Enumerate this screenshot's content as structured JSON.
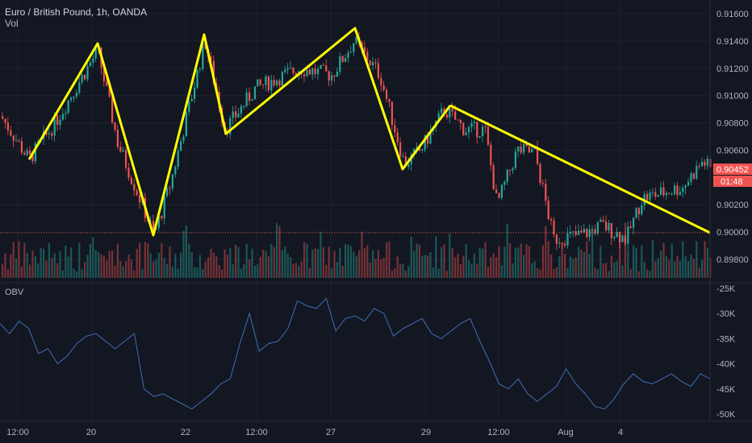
{
  "header": {
    "symbol_title": "Euro / British Pound, 1h, OANDA",
    "volume_label": "Vol",
    "obv_label": "OBV"
  },
  "price_axis": {
    "labels": [
      "0.91600",
      "0.91400",
      "0.91200",
      "0.91000",
      "0.90800",
      "0.90600",
      "0.90200",
      "0.90000",
      "0.89800"
    ],
    "current_price": "0.90452",
    "countdown": "01:48",
    "current_color": "#ef5350",
    "countdown_color": "#ef5350"
  },
  "obv_axis": {
    "labels": [
      "-25K",
      "-30K",
      "-35K",
      "-40K",
      "-45K",
      "-50K"
    ]
  },
  "time_axis": {
    "labels": [
      "12:00",
      "20",
      "22",
      "12:00",
      "27",
      "29",
      "12:00",
      "Aug",
      "4"
    ]
  },
  "colors": {
    "background": "#131722",
    "bull": "#26a69a",
    "bear": "#ef5350",
    "drawing": "#ffff00",
    "obv_line": "#3f6eb5",
    "grid": "#1e222d",
    "dotted_line": "#ef5350"
  },
  "chart_data": {
    "type": "candlestick",
    "price_range": [
      0.8975,
      0.9165
    ],
    "obv_range": [
      -52000,
      -24000
    ],
    "dotted_level": 0.89995,
    "trend_drawings": [
      {
        "name": "zigzag-1",
        "points": [
          [
            0.9053
          ],
          [
            0.9135
          ],
          [
            0.8996
          ],
          [
            0.9143
          ],
          [
            0.9071
          ],
          [
            0.9148
          ],
          [
            0.9046
          ],
          [
            0.9091
          ],
          [
            0.8999
          ]
        ]
      }
    ],
    "obv_values": [
      -32000,
      -34000,
      -31500,
      -33000,
      -38000,
      -37000,
      -40000,
      -38500,
      -36000,
      -34500,
      -34000,
      -35500,
      -37000,
      -35500,
      -34000,
      -45000,
      -46500,
      -46000,
      -47000,
      -48000,
      -49000,
      -47500,
      -46000,
      -44000,
      -43000,
      -36000,
      -30000,
      -37500,
      -36000,
      -35500,
      -33000,
      -27500,
      -28500,
      -29000,
      -27000,
      -33500,
      -31000,
      -30500,
      -31500,
      -29000,
      -30000,
      -34500,
      -33000,
      -32000,
      -31000,
      -34000,
      -35000,
      -33500,
      -32000,
      -31000,
      -35500,
      -39500,
      -44000,
      -45000,
      -43000,
      -46000,
      -47500,
      -46000,
      -44500,
      -41000,
      -44000,
      -46000,
      -48500,
      -49000,
      -47000,
      -44000,
      -42000,
      -43500,
      -44000,
      -43000,
      -42000,
      -43500,
      -44500,
      -42000,
      -43000
    ]
  }
}
